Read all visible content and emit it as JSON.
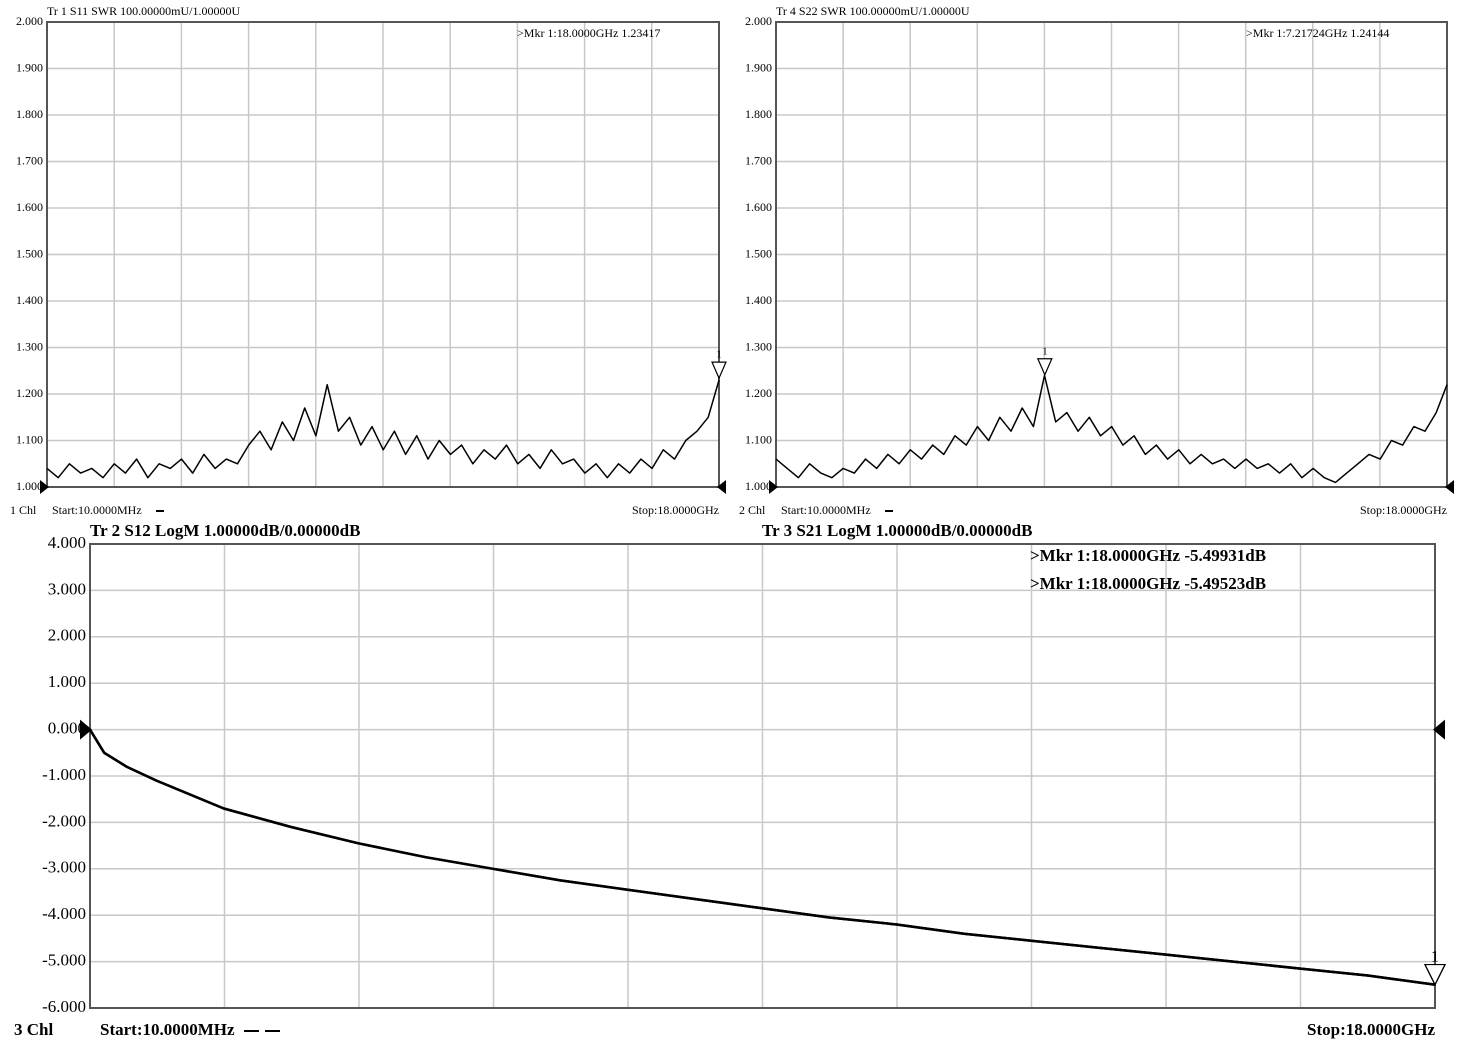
{
  "chart_data": [
    {
      "type": "line",
      "header": "Tr 1  S11 SWR 100.00000mU/1.00000U",
      "channel": "1 Chl",
      "start_label": "Start:10.0000MHz",
      "stop_label": "Stop:18.0000GHz",
      "xlim": [
        0.01,
        18
      ],
      "xticks": [
        0.01,
        1.809,
        3.608,
        5.407,
        7.206,
        9.005,
        10.804,
        12.603,
        14.402,
        16.201,
        18
      ],
      "ylim": [
        1,
        2
      ],
      "yticks": [
        {
          "value": 1,
          "label": "1.000"
        },
        {
          "value": 1.1,
          "label": "1.100"
        },
        {
          "value": 1.2,
          "label": "1.200"
        },
        {
          "value": 1.3,
          "label": "1.300"
        },
        {
          "value": 1.4,
          "label": "1.400"
        },
        {
          "value": 1.5,
          "label": "1.500"
        },
        {
          "value": 1.6,
          "label": "1.600"
        },
        {
          "value": 1.7,
          "label": "1.700"
        },
        {
          "value": 1.8,
          "label": "1.800"
        },
        {
          "value": 1.9,
          "label": "1.900"
        },
        {
          "value": 2,
          "label": "2.000"
        }
      ],
      "grid": true,
      "ref_level": 1,
      "x": [
        0.01,
        0.31,
        0.61,
        0.91,
        1.21,
        1.51,
        1.81,
        2.11,
        2.41,
        2.71,
        3.01,
        3.31,
        3.61,
        3.91,
        4.21,
        4.51,
        4.81,
        5.11,
        5.41,
        5.71,
        6.01,
        6.31,
        6.61,
        6.91,
        7.21,
        7.51,
        7.81,
        8.11,
        8.41,
        8.71,
        9.01,
        9.31,
        9.61,
        9.91,
        10.21,
        10.51,
        10.81,
        11.11,
        11.41,
        11.71,
        12.01,
        12.31,
        12.61,
        12.91,
        13.21,
        13.51,
        13.81,
        14.11,
        14.41,
        14.71,
        15.01,
        15.31,
        15.61,
        15.91,
        16.21,
        16.51,
        16.81,
        17.11,
        17.41,
        17.71,
        18.0
      ],
      "series": [
        {
          "color": "#000000",
          "values": [
            1.04,
            1.02,
            1.05,
            1.03,
            1.04,
            1.02,
            1.05,
            1.03,
            1.06,
            1.02,
            1.05,
            1.04,
            1.06,
            1.03,
            1.07,
            1.04,
            1.06,
            1.05,
            1.09,
            1.12,
            1.08,
            1.14,
            1.1,
            1.17,
            1.11,
            1.22,
            1.12,
            1.15,
            1.09,
            1.13,
            1.08,
            1.12,
            1.07,
            1.11,
            1.06,
            1.1,
            1.07,
            1.09,
            1.05,
            1.08,
            1.06,
            1.09,
            1.05,
            1.07,
            1.04,
            1.08,
            1.05,
            1.06,
            1.03,
            1.05,
            1.02,
            1.05,
            1.03,
            1.06,
            1.04,
            1.08,
            1.06,
            1.1,
            1.12,
            1.15,
            1.23
          ]
        }
      ],
      "markers": [
        {
          "label": "1",
          "x": 18,
          "y": 1.23417,
          "readout": ">Mkr 1:18.0000GHz 1.23417"
        }
      ]
    },
    {
      "type": "line",
      "header": "Tr 4  S22 SWR 100.00000mU/1.00000U",
      "channel": "2 Chl",
      "start_label": "Start:10.0000MHz",
      "stop_label": "Stop:18.0000GHz",
      "xlim": [
        0.01,
        18
      ],
      "xticks": [
        0.01,
        1.809,
        3.608,
        5.407,
        7.206,
        9.005,
        10.804,
        12.603,
        14.402,
        16.201,
        18
      ],
      "ylim": [
        1,
        2
      ],
      "yticks": [
        {
          "value": 1,
          "label": "1.000"
        },
        {
          "value": 1.1,
          "label": "1.100"
        },
        {
          "value": 1.2,
          "label": "1.200"
        },
        {
          "value": 1.3,
          "label": "1.300"
        },
        {
          "value": 1.4,
          "label": "1.400"
        },
        {
          "value": 1.5,
          "label": "1.500"
        },
        {
          "value": 1.6,
          "label": "1.600"
        },
        {
          "value": 1.7,
          "label": "1.700"
        },
        {
          "value": 1.8,
          "label": "1.800"
        },
        {
          "value": 1.9,
          "label": "1.900"
        },
        {
          "value": 2,
          "label": "2.000"
        }
      ],
      "grid": true,
      "ref_level": 1,
      "x": [
        0.01,
        0.31,
        0.61,
        0.91,
        1.21,
        1.51,
        1.81,
        2.11,
        2.41,
        2.71,
        3.01,
        3.31,
        3.61,
        3.91,
        4.21,
        4.51,
        4.81,
        5.11,
        5.41,
        5.71,
        6.01,
        6.31,
        6.61,
        6.91,
        7.21,
        7.51,
        7.81,
        8.11,
        8.41,
        8.71,
        9.01,
        9.31,
        9.61,
        9.91,
        10.21,
        10.51,
        10.81,
        11.11,
        11.41,
        11.71,
        12.01,
        12.31,
        12.61,
        12.91,
        13.21,
        13.51,
        13.81,
        14.11,
        14.41,
        14.71,
        15.01,
        15.31,
        15.61,
        15.91,
        16.21,
        16.51,
        16.81,
        17.11,
        17.41,
        17.71,
        18.0
      ],
      "series": [
        {
          "color": "#000000",
          "values": [
            1.06,
            1.04,
            1.02,
            1.05,
            1.03,
            1.02,
            1.04,
            1.03,
            1.06,
            1.04,
            1.07,
            1.05,
            1.08,
            1.06,
            1.09,
            1.07,
            1.11,
            1.09,
            1.13,
            1.1,
            1.15,
            1.12,
            1.17,
            1.13,
            1.24,
            1.14,
            1.16,
            1.12,
            1.15,
            1.11,
            1.13,
            1.09,
            1.11,
            1.07,
            1.09,
            1.06,
            1.08,
            1.05,
            1.07,
            1.05,
            1.06,
            1.04,
            1.06,
            1.04,
            1.05,
            1.03,
            1.05,
            1.02,
            1.04,
            1.02,
            1.01,
            1.03,
            1.05,
            1.07,
            1.06,
            1.1,
            1.09,
            1.13,
            1.12,
            1.16,
            1.22
          ]
        }
      ],
      "markers": [
        {
          "label": "1",
          "x": 7.21724,
          "y": 1.24144,
          "readout": ">Mkr 1:7.21724GHz 1.24144"
        }
      ]
    },
    {
      "type": "line",
      "headers": [
        "Tr 2  S12  LogM  1.00000dB/0.00000dB",
        "Tr 3  S21  LogM  1.00000dB/0.00000dB"
      ],
      "channel": "3 Chl",
      "start_label": "Start:10.0000MHz",
      "stop_label": "Stop:18.0000GHz",
      "xlim": [
        0.01,
        18
      ],
      "xticks": [
        0.01,
        1.809,
        3.608,
        5.407,
        7.206,
        9.005,
        10.804,
        12.603,
        14.402,
        16.201,
        18
      ],
      "ylim": [
        -6,
        4
      ],
      "yticks": [
        {
          "value": -6,
          "label": "-6.000"
        },
        {
          "value": -5,
          "label": "-5.000"
        },
        {
          "value": -4,
          "label": "-4.000"
        },
        {
          "value": -3,
          "label": "-3.000"
        },
        {
          "value": -2,
          "label": "-2.000"
        },
        {
          "value": -1,
          "label": "-1.000"
        },
        {
          "value": 0,
          "label": "0.000"
        },
        {
          "value": 1,
          "label": "1.000"
        },
        {
          "value": 2,
          "label": "2.000"
        },
        {
          "value": 3,
          "label": "3.000"
        },
        {
          "value": 4,
          "label": "4.000"
        }
      ],
      "grid": true,
      "ref_level": 0,
      "x": [
        0.01,
        0.2,
        0.5,
        0.9,
        1.8,
        2.7,
        3.6,
        4.5,
        5.4,
        6.3,
        7.2,
        8.1,
        9.0,
        9.9,
        10.8,
        11.7,
        12.6,
        13.5,
        14.4,
        15.3,
        16.2,
        17.1,
        18.0
      ],
      "series": [
        {
          "color": "#000000",
          "values": [
            0,
            -0.5,
            -0.8,
            -1.1,
            -1.7,
            -2.1,
            -2.45,
            -2.75,
            -3.0,
            -3.25,
            -3.45,
            -3.65,
            -3.85,
            -4.05,
            -4.2,
            -4.4,
            -4.55,
            -4.7,
            -4.85,
            -5.0,
            -5.15,
            -5.3,
            -5.5
          ]
        },
        {
          "color": "#000000",
          "values": [
            0,
            -0.5,
            -0.8,
            -1.1,
            -1.7,
            -2.1,
            -2.45,
            -2.75,
            -3.0,
            -3.25,
            -3.45,
            -3.65,
            -3.85,
            -4.05,
            -4.2,
            -4.4,
            -4.55,
            -4.7,
            -4.85,
            -5.0,
            -5.15,
            -5.3,
            -5.495
          ]
        }
      ],
      "markers": [
        {
          "label": "1",
          "x": 18,
          "y": -5.49931,
          "readout": ">Mkr 1:18.0000GHz -5.49931dB"
        },
        {
          "label": "1",
          "x": 18,
          "y": -5.49523,
          "readout": ">Mkr 1:18.0000GHz -5.49523dB"
        }
      ]
    }
  ]
}
